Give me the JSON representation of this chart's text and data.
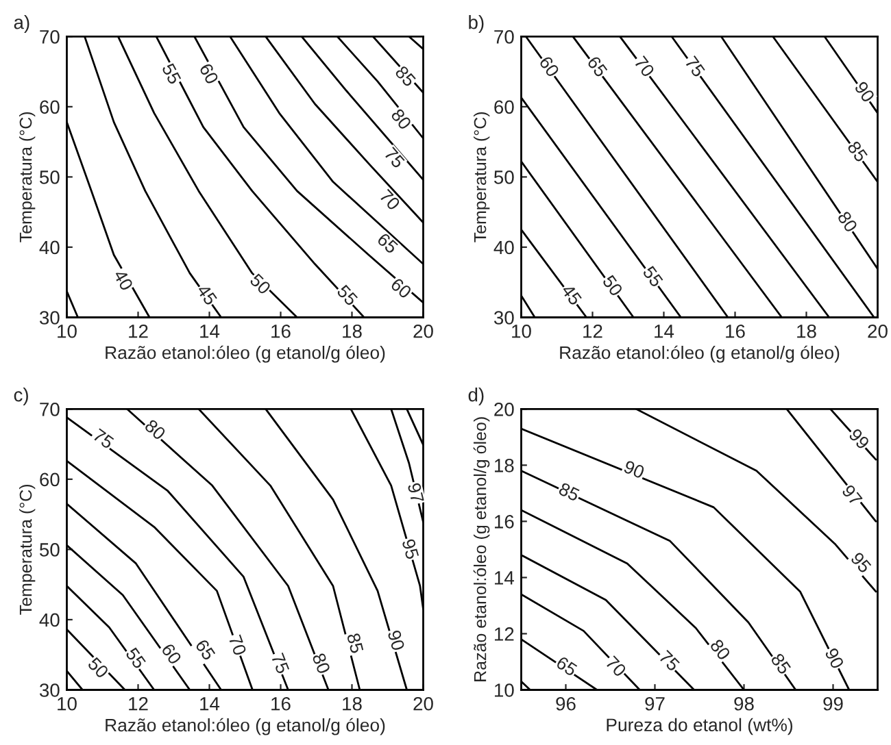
{
  "chart_data": [
    {
      "type": "line",
      "title": "a)",
      "xlabel": "Razão etanol:óleo (g etanol/g óleo)",
      "ylabel": "Temperatura (°C)",
      "xlim": [
        10,
        20
      ],
      "ylim": [
        30,
        70
      ],
      "xticks": [
        10,
        12,
        14,
        16,
        18,
        20
      ],
      "yticks": [
        30,
        40,
        50,
        60,
        70
      ],
      "grid": false,
      "legend": false,
      "series": [
        {
          "color": "#000000",
          "x": [
            10,
            10.31
          ],
          "values": [
            33.7,
            30
          ]
        },
        {
          "color": "#000000",
          "x": [
            10,
            10.69,
            11.32,
            12.32
          ],
          "values": [
            57.8,
            48.0,
            38.9,
            30
          ]
        },
        {
          "color": "#000000",
          "x": [
            10.5,
            11.32,
            12.2,
            13.45,
            14.33
          ],
          "values": [
            70,
            57.8,
            48,
            36.3,
            30
          ]
        },
        {
          "color": "#000000",
          "x": [
            11.44,
            12.45,
            13.7,
            15.2,
            16.46
          ],
          "values": [
            70,
            59.1,
            48,
            36.3,
            30
          ]
        },
        {
          "color": "#000000",
          "x": [
            12.51,
            13.83,
            15.2,
            16.96,
            18.34
          ],
          "values": [
            70,
            57.1,
            48,
            37.6,
            30
          ]
        },
        {
          "color": "#000000",
          "x": [
            13.58,
            14.96,
            16.46,
            18.47,
            20
          ],
          "values": [
            70,
            57.1,
            48,
            38.9,
            32.1
          ]
        },
        {
          "color": "#000000",
          "x": [
            14.58,
            15.96,
            17.47,
            20
          ],
          "values": [
            70,
            59.1,
            49.3,
            37.6
          ]
        },
        {
          "color": "#000000",
          "x": [
            15.58,
            16.96,
            18.47,
            20
          ],
          "values": [
            70,
            60.4,
            51.9,
            43.5
          ]
        },
        {
          "color": "#000000",
          "x": [
            16.59,
            17.84,
            20
          ],
          "values": [
            70,
            62.3,
            49.6
          ]
        },
        {
          "color": "#000000",
          "x": [
            17.59,
            18.72,
            20
          ],
          "values": [
            70,
            63.6,
            55.5
          ]
        },
        {
          "color": "#000000",
          "x": [
            18.59,
            20
          ],
          "values": [
            70,
            62
          ]
        },
        {
          "color": "#000000",
          "x": [
            19.6,
            20
          ],
          "values": [
            70,
            68.2
          ]
        }
      ],
      "annotations": [
        {
          "text": "40",
          "x": 11.55,
          "y": 35.2
        },
        {
          "text": "45",
          "x": 13.9,
          "y": 33.1
        },
        {
          "text": "50",
          "x": 15.4,
          "y": 34.6
        },
        {
          "text": "55",
          "x": 12.9,
          "y": 64.6
        },
        {
          "text": "55",
          "x": 17.84,
          "y": 33.0
        },
        {
          "text": "60",
          "x": 13.95,
          "y": 64.6
        },
        {
          "text": "60",
          "x": 19.35,
          "y": 34.0
        },
        {
          "text": "65",
          "x": 18.97,
          "y": 40.4
        },
        {
          "text": "70",
          "x": 19.03,
          "y": 46.6
        },
        {
          "text": "75",
          "x": 19.16,
          "y": 52.6
        },
        {
          "text": "80",
          "x": 19.35,
          "y": 58.1
        },
        {
          "text": "85",
          "x": 19.47,
          "y": 64.2
        }
      ]
    },
    {
      "type": "line",
      "title": "b)",
      "xlabel": "Razão etanol:óleo (g etanol/g óleo)",
      "ylabel": "Temperatura (°C)",
      "xlim": [
        10,
        20
      ],
      "ylim": [
        30,
        70
      ],
      "xticks": [
        10,
        12,
        14,
        16,
        18,
        20
      ],
      "yticks": [
        30,
        40,
        50,
        60,
        70
      ],
      "grid": false,
      "legend": false,
      "series": [
        {
          "color": "#000000",
          "x": [
            10,
            10.38
          ],
          "values": [
            33.1,
            30
          ]
        },
        {
          "color": "#000000",
          "x": [
            10,
            11.83
          ],
          "values": [
            42.5,
            30
          ]
        },
        {
          "color": "#000000",
          "x": [
            10,
            13.15
          ],
          "values": [
            52.2,
            30
          ]
        },
        {
          "color": "#000000",
          "x": [
            10,
            14.48
          ],
          "values": [
            61.3,
            30
          ]
        },
        {
          "color": "#000000",
          "x": [
            10.13,
            15.8
          ],
          "values": [
            70,
            30
          ]
        },
        {
          "color": "#000000",
          "x": [
            11.45,
            17.31
          ],
          "values": [
            70,
            30
          ]
        },
        {
          "color": "#000000",
          "x": [
            12.77,
            18.64
          ],
          "values": [
            70,
            30
          ]
        },
        {
          "color": "#000000",
          "x": [
            14.22,
            19.9
          ],
          "values": [
            70,
            30
          ]
        },
        {
          "color": "#000000",
          "x": [
            15.61,
            20
          ],
          "values": [
            70,
            36.9
          ]
        },
        {
          "color": "#000000",
          "x": [
            17.06,
            20
          ],
          "values": [
            70,
            49.3
          ]
        },
        {
          "color": "#000000",
          "x": [
            18.51,
            20
          ],
          "values": [
            70,
            59.1
          ]
        }
      ],
      "annotations": [
        {
          "text": "45",
          "x": 11.38,
          "y": 33.1
        },
        {
          "text": "50",
          "x": 12.53,
          "y": 34.4
        },
        {
          "text": "55",
          "x": 13.66,
          "y": 35.7
        },
        {
          "text": "60",
          "x": 10.75,
          "y": 65.6
        },
        {
          "text": "65",
          "x": 12.1,
          "y": 65.6
        },
        {
          "text": "70",
          "x": 13.42,
          "y": 65.6
        },
        {
          "text": "75",
          "x": 14.84,
          "y": 65.6
        },
        {
          "text": "80",
          "x": 19.12,
          "y": 43.5
        },
        {
          "text": "85",
          "x": 19.4,
          "y": 53.5
        },
        {
          "text": "90",
          "x": 19.6,
          "y": 62
        }
      ]
    },
    {
      "type": "line",
      "title": "c)",
      "xlabel": "Razão etanol:óleo (g etanol/g óleo)",
      "ylabel": "Temperatura (°C)",
      "xlim": [
        10,
        20
      ],
      "ylim": [
        30,
        70
      ],
      "xticks": [
        10,
        12,
        14,
        16,
        18,
        20
      ],
      "yticks": [
        30,
        40,
        50,
        60,
        70
      ],
      "grid": false,
      "legend": false,
      "series": [
        {
          "color": "#000000",
          "x": [
            10,
            10.44
          ],
          "values": [
            32.7,
            30
          ]
        },
        {
          "color": "#000000",
          "x": [
            10,
            11.63
          ],
          "values": [
            38.6,
            30
          ]
        },
        {
          "color": "#000000",
          "x": [
            10,
            11.19,
            12.45
          ],
          "values": [
            44.8,
            38.9,
            30
          ]
        },
        {
          "color": "#000000",
          "x": [
            10,
            11.57,
            13.45
          ],
          "values": [
            50.6,
            43.5,
            30
          ]
        },
        {
          "color": "#000000",
          "x": [
            10,
            11.94,
            14.33
          ],
          "values": [
            56.5,
            48,
            30
          ]
        },
        {
          "color": "#000000",
          "x": [
            10,
            12.45,
            14.21,
            15.21
          ],
          "values": [
            62.6,
            53.2,
            44.1,
            30
          ]
        },
        {
          "color": "#000000",
          "x": [
            10,
            12.82,
            14.96,
            16.21
          ],
          "values": [
            68.8,
            58.4,
            46.1,
            30
          ]
        },
        {
          "color": "#000000",
          "x": [
            11.69,
            14.08,
            16.21,
            17.34
          ],
          "values": [
            70,
            59.1,
            44.8,
            30
          ]
        },
        {
          "color": "#000000",
          "x": [
            13.7,
            15.71,
            17.47,
            18.22
          ],
          "values": [
            70,
            59.1,
            44.8,
            30
          ]
        },
        {
          "color": "#000000",
          "x": [
            15.58,
            17.47,
            18.72,
            19.54
          ],
          "values": [
            70,
            57.1,
            44.1,
            30
          ]
        },
        {
          "color": "#000000",
          "x": [
            17.97,
            19.1,
            19.91,
            20
          ],
          "values": [
            70,
            59.1,
            44.8,
            41.5
          ]
        },
        {
          "color": "#000000",
          "x": [
            19.1,
            19.6,
            20
          ],
          "values": [
            70,
            62.3,
            53.9
          ]
        },
        {
          "color": "#000000",
          "x": [
            19.54,
            20
          ],
          "values": [
            70,
            64.9
          ]
        }
      ],
      "annotations": [
        {
          "text": "50",
          "x": 10.85,
          "y": 33.0
        },
        {
          "text": "55",
          "x": 11.9,
          "y": 34.4
        },
        {
          "text": "60",
          "x": 12.9,
          "y": 35.0
        },
        {
          "text": "65",
          "x": 13.85,
          "y": 35.6
        },
        {
          "text": "70",
          "x": 14.75,
          "y": 36.3
        },
        {
          "text": "75",
          "x": 11.0,
          "y": 65.6
        },
        {
          "text": "75",
          "x": 15.95,
          "y": 33.7
        },
        {
          "text": "80",
          "x": 12.45,
          "y": 66.9
        },
        {
          "text": "80",
          "x": 17.1,
          "y": 33.7
        },
        {
          "text": "85",
          "x": 18.05,
          "y": 36.6
        },
        {
          "text": "90",
          "x": 19.2,
          "y": 37.0
        },
        {
          "text": "95",
          "x": 19.6,
          "y": 50.0
        },
        {
          "text": "97",
          "x": 19.75,
          "y": 58.0
        }
      ]
    },
    {
      "type": "line",
      "title": "d)",
      "xlabel": "Pureza do etanol (wt%)",
      "ylabel": "Razão etanol:óleo (g etanol/g óleo)",
      "xlim": [
        95.5,
        99.5
      ],
      "ylim": [
        10,
        20
      ],
      "xticks": [
        96,
        97,
        98,
        99
      ],
      "yticks": [
        10,
        12,
        14,
        16,
        18,
        20
      ],
      "grid": false,
      "legend": false,
      "series": [
        {
          "color": "#000000",
          "x": [
            95.5,
            95.6
          ],
          "values": [
            10.3,
            10
          ]
        },
        {
          "color": "#000000",
          "x": [
            95.5,
            96.35
          ],
          "values": [
            11.8,
            10
          ]
        },
        {
          "color": "#000000",
          "x": [
            95.5,
            96.2,
            96.83
          ],
          "values": [
            13.4,
            12.1,
            10
          ]
        },
        {
          "color": "#000000",
          "x": [
            95.5,
            96.45,
            97.44
          ],
          "values": [
            14.8,
            13.2,
            10
          ]
        },
        {
          "color": "#000000",
          "x": [
            95.5,
            96.69,
            97.46,
            98.0
          ],
          "values": [
            16.4,
            14.5,
            12.2,
            10
          ]
        },
        {
          "color": "#000000",
          "x": [
            95.5,
            97.17,
            98.05,
            98.58
          ],
          "values": [
            17.8,
            15.3,
            12.4,
            10
          ]
        },
        {
          "color": "#000000",
          "x": [
            95.5,
            97.66,
            98.63,
            99.18
          ],
          "values": [
            19.3,
            16.5,
            13.5,
            10
          ]
        },
        {
          "color": "#000000",
          "x": [
            96.79,
            98.14,
            99.02,
            99.48
          ],
          "values": [
            20,
            17.8,
            15.2,
            13.5
          ]
        },
        {
          "color": "#000000",
          "x": [
            98.48,
            99.48
          ],
          "values": [
            20,
            16
          ]
        },
        {
          "color": "#000000",
          "x": [
            98.97,
            99.48
          ],
          "values": [
            20,
            18.2
          ]
        }
      ],
      "annotations": [
        {
          "text": "65",
          "x": 96.0,
          "y": 10.8
        },
        {
          "text": "70",
          "x": 96.55,
          "y": 10.8
        },
        {
          "text": "75",
          "x": 97.15,
          "y": 11.0
        },
        {
          "text": "80",
          "x": 97.72,
          "y": 11.4
        },
        {
          "text": "85",
          "x": 96.03,
          "y": 17.0
        },
        {
          "text": "85",
          "x": 98.4,
          "y": 10.9
        },
        {
          "text": "90",
          "x": 96.76,
          "y": 17.8
        },
        {
          "text": "90",
          "x": 99.0,
          "y": 11.1
        },
        {
          "text": "95",
          "x": 99.3,
          "y": 14.5
        },
        {
          "text": "97",
          "x": 99.2,
          "y": 16.9
        },
        {
          "text": "99",
          "x": 99.28,
          "y": 18.9
        }
      ]
    }
  ]
}
